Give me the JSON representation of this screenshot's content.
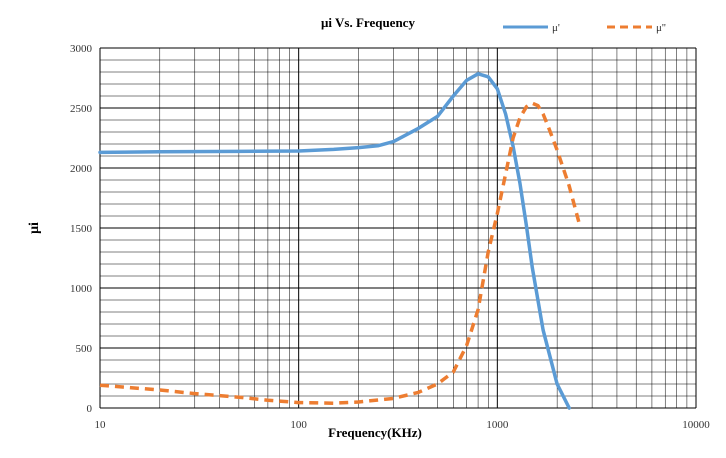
{
  "chart_data": {
    "type": "line",
    "title": "μi Vs. Frequency",
    "xlabel": "Frequency(KHz)",
    "ylabel": "μi",
    "x_scale": "log",
    "xlim": [
      10,
      10000
    ],
    "ylim": [
      0,
      3000
    ],
    "x_ticks": [
      10,
      100,
      1000,
      10000
    ],
    "x_tick_labels": [
      "10",
      "100",
      "1000",
      "10000"
    ],
    "y_ticks": [
      0,
      500,
      1000,
      1500,
      2000,
      2500,
      3000
    ],
    "y_tick_labels": [
      "0",
      "500",
      "1000",
      "1500",
      "2000",
      "2500",
      "3000"
    ],
    "grid": {
      "major": true,
      "minor_y_step": 100,
      "minor_x": "log-decade"
    },
    "legend": "top-right",
    "series": [
      {
        "name": "μ'",
        "color": "#5B9BD5",
        "style": "solid",
        "x": [
          10,
          20,
          50,
          100,
          150,
          200,
          250,
          300,
          400,
          500,
          600,
          700,
          800,
          900,
          1000,
          1100,
          1200,
          1300,
          1400,
          1500,
          1700,
          2000,
          2300
        ],
        "y": [
          2130,
          2135,
          2138,
          2142,
          2155,
          2170,
          2185,
          2220,
          2330,
          2430,
          2600,
          2730,
          2785,
          2760,
          2660,
          2450,
          2180,
          1870,
          1520,
          1170,
          650,
          200,
          0
        ]
      },
      {
        "name": "μ''",
        "color": "#ED7D31",
        "style": "dashed",
        "x": [
          10,
          20,
          30,
          50,
          70,
          100,
          150,
          200,
          300,
          400,
          500,
          600,
          700,
          800,
          900,
          1000,
          1100,
          1200,
          1300,
          1400,
          1500,
          1600,
          1700,
          1800,
          2000,
          2300,
          2600
        ],
        "y": [
          190,
          150,
          120,
          90,
          65,
          45,
          40,
          50,
          80,
          130,
          200,
          300,
          520,
          820,
          1300,
          1620,
          1950,
          2250,
          2420,
          2510,
          2540,
          2520,
          2450,
          2350,
          2150,
          1850,
          1520
        ]
      }
    ]
  }
}
